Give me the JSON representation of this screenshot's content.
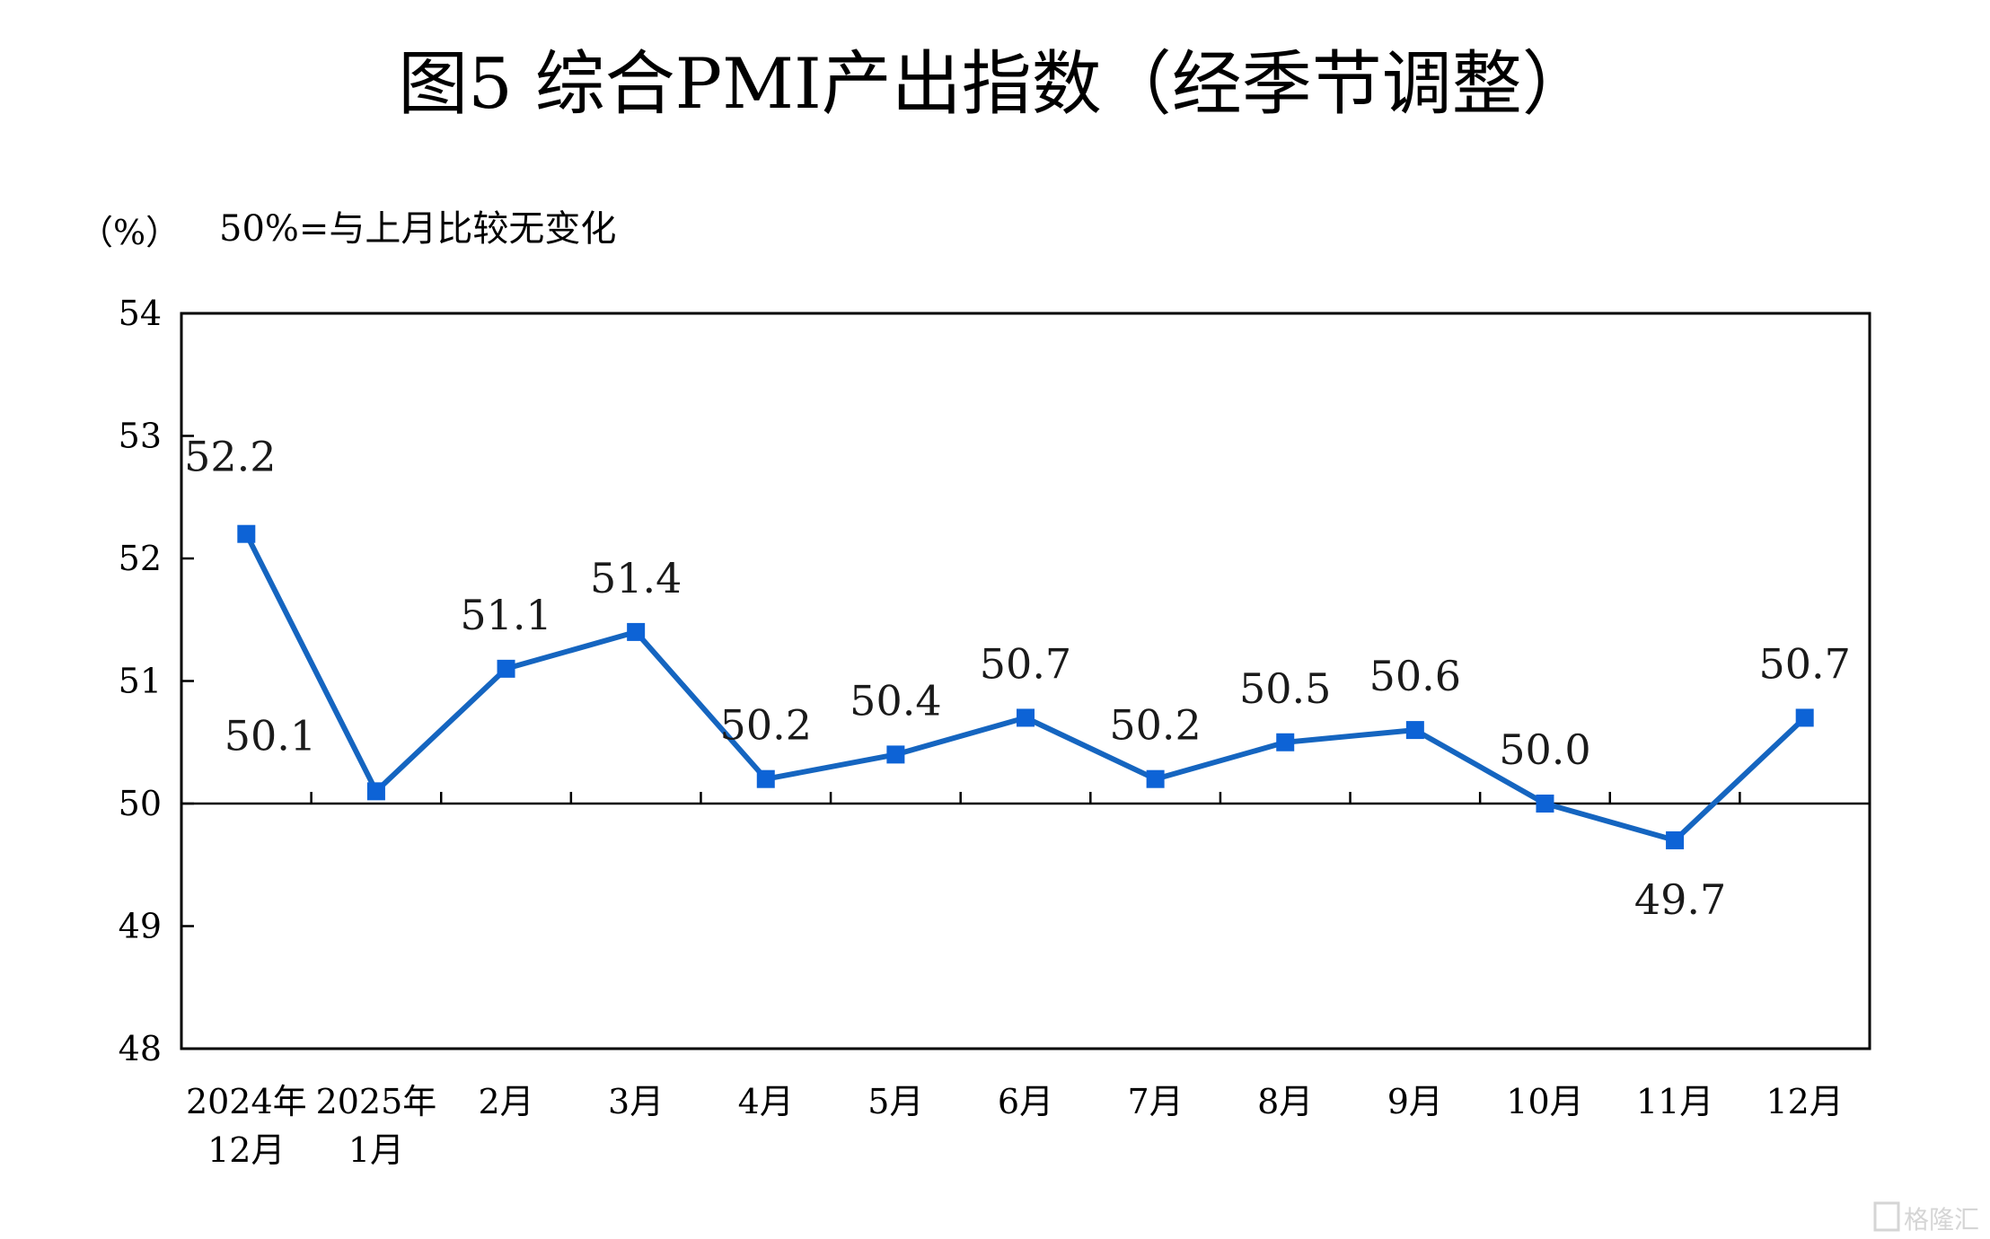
{
  "chart_data": {
    "type": "line",
    "title": "图5  综合PMI产出指数（经季节调整）",
    "ylabel": "（%）",
    "annotation": "50%=与上月比较无变化",
    "ylim": [
      48,
      54
    ],
    "yticks": [
      48,
      49,
      50,
      51,
      52,
      53,
      54
    ],
    "reference_line": 50,
    "grid": false,
    "legend": "none",
    "categories": [
      [
        "2024年",
        "12月"
      ],
      [
        "2025年",
        "1月"
      ],
      [
        "2月"
      ],
      [
        "3月"
      ],
      [
        "4月"
      ],
      [
        "5月"
      ],
      [
        "6月"
      ],
      [
        "7月"
      ],
      [
        "8月"
      ],
      [
        "9月"
      ],
      [
        "10月"
      ],
      [
        "11月"
      ],
      [
        "12月"
      ]
    ],
    "values": [
      52.2,
      50.1,
      51.1,
      51.4,
      50.2,
      50.4,
      50.7,
      50.2,
      50.5,
      50.6,
      50.0,
      49.7,
      50.7
    ],
    "labels": [
      "52.2",
      "50.1",
      "51.1",
      "51.4",
      "50.2",
      "50.4",
      "50.7",
      "50.2",
      "50.5",
      "50.6",
      "50.0",
      "49.7",
      "50.7"
    ],
    "label_positions": [
      "above-left",
      "left",
      "above",
      "above",
      "above",
      "above",
      "above",
      "above",
      "above",
      "above",
      "above",
      "below",
      "above"
    ],
    "colors": {
      "line": "#1565c0",
      "marker": "#0d63d6",
      "axis": "#000000"
    }
  },
  "watermark": "格隆汇"
}
